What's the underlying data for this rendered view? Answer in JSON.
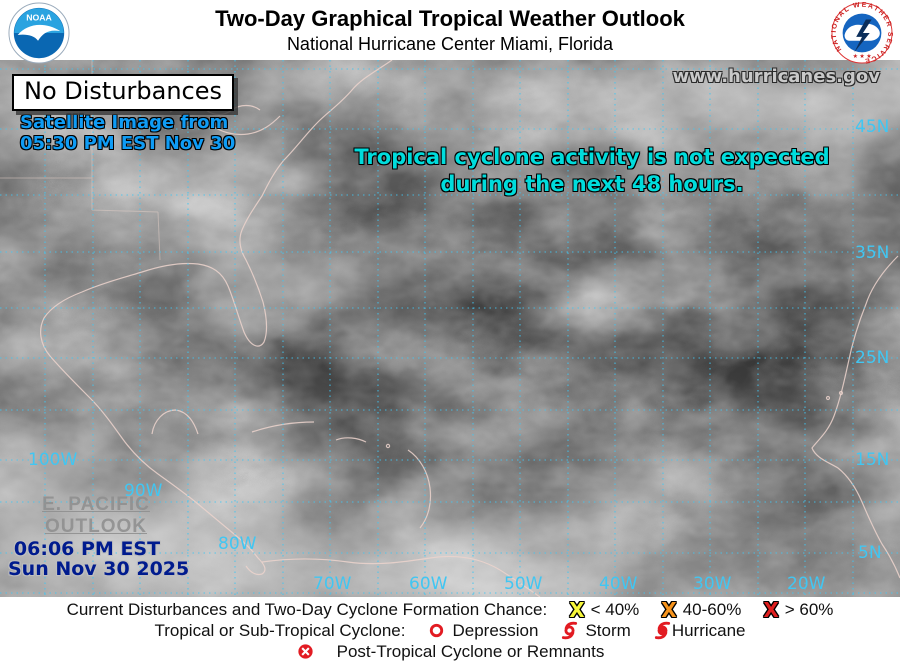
{
  "colors": {
    "accent_red": "#e21b22",
    "chance_low": "#f7f73a",
    "chance_med": "#f7941d",
    "chance_high": "#e01f1f",
    "satellite_blue": "#0f9cf5",
    "message_cyan": "#00dcdc",
    "grid_cyan": "#41c6f2",
    "issued_navy": "#001b8e",
    "pacific_gray": "#8f8f8f",
    "site_gray": "#c9c9c9"
  },
  "header": {
    "title": "Two-Day Graphical Tropical Weather Outlook",
    "subtitle": "National Hurricane Center  Miami, Florida",
    "noaa_logo_text": "NOAA",
    "nws_logo_text": "NATIONAL WEATHER SERVICE",
    "nws_logo_stars": "★ ★ ★"
  },
  "map": {
    "status_box": "No Disturbances",
    "satellite_caption_line1": "Satellite Image from",
    "satellite_caption_line2": "05:30 PM EST Nov 30",
    "website": "www.hurricanes.gov",
    "message_line1": "Tropical cyclone activity is not expected",
    "message_line2": "during the next 48 hours.",
    "pacific_link_line1": "E. PACIFIC",
    "pacific_link_line2": "OUTLOOK",
    "issued_time": "06:06 PM EST",
    "issued_date": "Sun Nov 30 2025",
    "lat_labels": [
      {
        "text": "45N"
      },
      {
        "text": "35N"
      },
      {
        "text": "25N"
      },
      {
        "text": "15N"
      },
      {
        "text": "5N"
      }
    ],
    "lon_labels_bottom": [
      {
        "text": "70W"
      },
      {
        "text": "60W"
      },
      {
        "text": "50W"
      },
      {
        "text": "40W"
      },
      {
        "text": "30W"
      },
      {
        "text": "20W"
      }
    ],
    "lon_labels_left": [
      {
        "text": "100W"
      },
      {
        "text": "90W"
      },
      {
        "text": "80W"
      }
    ],
    "grid": {
      "h_lines": [
        9,
        69,
        135,
        192,
        248,
        298,
        350,
        400,
        442,
        493,
        533
      ],
      "v_lines": [
        45,
        93,
        140,
        188,
        235,
        283,
        330,
        378,
        425,
        473,
        520,
        568,
        615,
        663,
        710,
        758,
        805,
        853
      ]
    }
  },
  "legend": {
    "line1_label": "Current Disturbances and Two-Day Cyclone Formation Chance:",
    "chances": [
      {
        "symbol": "x-low",
        "label": "< 40%"
      },
      {
        "symbol": "x-med",
        "label": "40-60%"
      },
      {
        "symbol": "x-high",
        "label": "> 60%"
      }
    ],
    "line2_label": "Tropical or Sub-Tropical Cyclone:",
    "cyclone_types": [
      {
        "symbol": "depression",
        "label": "Depression"
      },
      {
        "symbol": "storm",
        "label": "Storm"
      },
      {
        "symbol": "hurricane",
        "label": "Hurricane"
      }
    ],
    "line3_label": "Post-Tropical Cyclone or Remnants"
  }
}
